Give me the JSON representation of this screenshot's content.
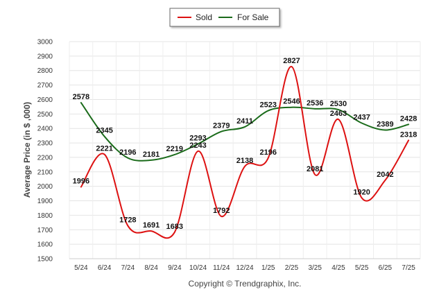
{
  "chart_data": {
    "type": "line",
    "title": "",
    "xlabel": "",
    "ylabel": "Average Price (in $ ,000)",
    "footer": "Copyright © Trendgraphix, Inc.",
    "ylim": [
      1500,
      3000
    ],
    "y_ticks": [
      1500,
      1600,
      1700,
      1800,
      1900,
      2000,
      2100,
      2200,
      2300,
      2400,
      2500,
      2600,
      2700,
      2800,
      2900,
      3000
    ],
    "categories": [
      "5/24",
      "6/24",
      "7/24",
      "8/24",
      "9/24",
      "10/24",
      "11/24",
      "12/24",
      "1/25",
      "2/25",
      "3/25",
      "4/25",
      "5/25",
      "6/25",
      "7/25"
    ],
    "grid": true,
    "legend_position": "top-center",
    "series": [
      {
        "name": "Sold",
        "color": "#dd1111",
        "values": [
          1996,
          2221,
          1728,
          1691,
          1683,
          2243,
          1792,
          2138,
          2196,
          2827,
          2081,
          2463,
          1920,
          2042,
          2318
        ]
      },
      {
        "name": "For Sale",
        "color": "#1a6b1a",
        "values": [
          2578,
          2345,
          2196,
          2181,
          2219,
          2293,
          2379,
          2411,
          2523,
          2546,
          2536,
          2530,
          2437,
          2389,
          2428
        ]
      }
    ]
  }
}
